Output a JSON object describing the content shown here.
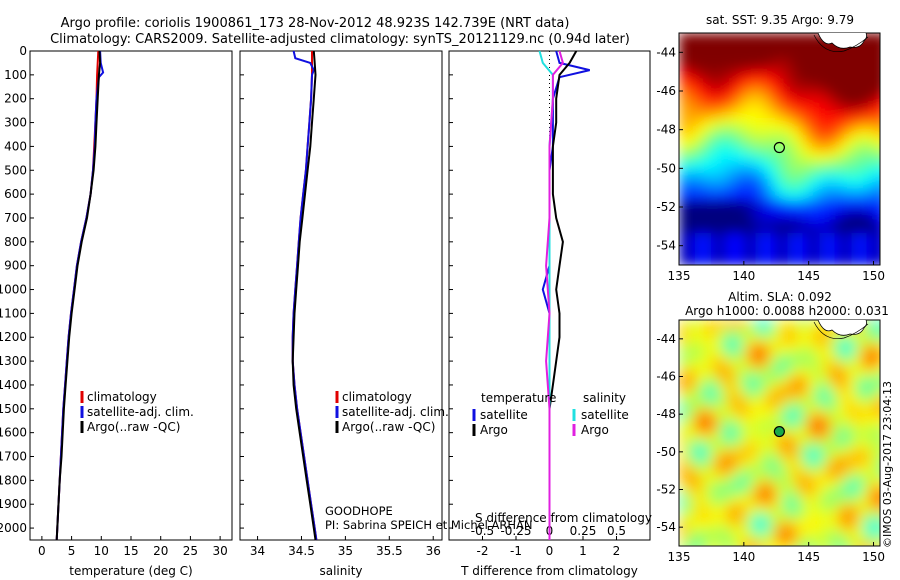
{
  "header": {
    "line1": "Argo profile: coriolis 1900861_173 28-Nov-2012 48.923S 142.739E (NRT data)",
    "line2": "Climatology: CARS2009. Satellite-adjusted climatology: synTS_20121129.nc (0.94d later)"
  },
  "footer": {
    "credit": "©IMOS 03-Aug-2017 23:04:13",
    "project": "GOODHOPE",
    "pi": "PI: Sabrina SPEICH et Michel ARHAN"
  },
  "colors": {
    "climatology": "#e00000",
    "satellite_adj": "#1010e0",
    "argo": "#000000",
    "satellite_s": "#20e0e0",
    "argo_s": "#e020e0"
  },
  "chart_data": [
    {
      "type": "line",
      "id": "temperature",
      "xlabel": "temperature (deg C)",
      "xlim": [
        -2,
        32
      ],
      "xticks": [
        0,
        5,
        10,
        15,
        20,
        25,
        30
      ],
      "ylim": [
        0,
        2050
      ],
      "yticks": [
        0,
        100,
        200,
        300,
        400,
        500,
        600,
        700,
        800,
        900,
        1000,
        1100,
        1200,
        1300,
        1400,
        1500,
        1600,
        1700,
        1800,
        1900,
        2000
      ],
      "legend": [
        "climatology",
        "satellite-adj. clim.",
        "Argo(..raw -QC)"
      ],
      "series": [
        {
          "name": "climatology",
          "color": "#e00000",
          "points": [
            [
              9.5,
              0
            ],
            [
              9.4,
              50
            ],
            [
              9.3,
              100
            ],
            [
              9.2,
              200
            ],
            [
              9.0,
              300
            ],
            [
              8.8,
              400
            ],
            [
              8.6,
              500
            ],
            [
              8.2,
              600
            ],
            [
              7.5,
              700
            ],
            [
              6.6,
              800
            ],
            [
              5.9,
              900
            ],
            [
              5.4,
              1000
            ],
            [
              4.9,
              1100
            ],
            [
              4.5,
              1200
            ],
            [
              4.2,
              1300
            ],
            [
              3.9,
              1400
            ],
            [
              3.6,
              1500
            ],
            [
              3.4,
              1600
            ],
            [
              3.2,
              1700
            ],
            [
              3.0,
              1800
            ],
            [
              2.8,
              1900
            ],
            [
              2.6,
              2000
            ],
            [
              2.5,
              2050
            ]
          ]
        },
        {
          "name": "satellite-adj. clim.",
          "color": "#1010e0",
          "points": [
            [
              9.8,
              0
            ],
            [
              9.9,
              50
            ],
            [
              10.3,
              90
            ],
            [
              9.6,
              110
            ],
            [
              9.2,
              200
            ],
            [
              9.0,
              300
            ],
            [
              8.9,
              400
            ],
            [
              8.6,
              500
            ],
            [
              8.2,
              600
            ],
            [
              7.5,
              700
            ],
            [
              6.6,
              800
            ],
            [
              5.9,
              900
            ],
            [
              5.4,
              1000
            ],
            [
              4.9,
              1100
            ],
            [
              4.5,
              1200
            ],
            [
              4.2,
              1300
            ],
            [
              3.9,
              1400
            ],
            [
              3.6,
              1500
            ],
            [
              3.4,
              1600
            ],
            [
              3.2,
              1700
            ],
            [
              3.0,
              1800
            ],
            [
              2.8,
              1900
            ],
            [
              2.6,
              2000
            ],
            [
              2.5,
              2050
            ]
          ]
        },
        {
          "name": "Argo(..raw -QC)",
          "color": "#000000",
          "points": [
            [
              9.7,
              0
            ],
            [
              9.8,
              50
            ],
            [
              9.6,
              100
            ],
            [
              9.5,
              150
            ],
            [
              9.4,
              200
            ],
            [
              9.2,
              300
            ],
            [
              9.0,
              400
            ],
            [
              8.7,
              500
            ],
            [
              8.2,
              600
            ],
            [
              7.6,
              700
            ],
            [
              6.7,
              800
            ],
            [
              6.0,
              900
            ],
            [
              5.5,
              1000
            ],
            [
              5.0,
              1100
            ],
            [
              4.6,
              1200
            ],
            [
              4.3,
              1300
            ],
            [
              4.0,
              1400
            ],
            [
              3.7,
              1500
            ],
            [
              3.5,
              1600
            ],
            [
              3.3,
              1700
            ],
            [
              3.0,
              1800
            ],
            [
              2.8,
              1900
            ],
            [
              2.6,
              2000
            ],
            [
              2.5,
              2050
            ]
          ]
        }
      ]
    },
    {
      "type": "line",
      "id": "salinity",
      "xlabel": "salinity",
      "xlim": [
        33.8,
        36.1
      ],
      "xticks": [
        34,
        34.5,
        35,
        35.5,
        36
      ],
      "ylim": [
        0,
        2050
      ],
      "legend": [
        "climatology",
        "satellite-adj. clim.",
        "Argo(..raw -QC)"
      ],
      "series": [
        {
          "name": "climatology",
          "color": "#e00000",
          "points": [
            [
              34.62,
              0
            ],
            [
              34.62,
              100
            ],
            [
              34.61,
              200
            ],
            [
              34.59,
              300
            ],
            [
              34.57,
              400
            ],
            [
              34.55,
              500
            ],
            [
              34.52,
              600
            ],
            [
              34.49,
              700
            ],
            [
              34.47,
              800
            ],
            [
              34.45,
              900
            ],
            [
              34.43,
              1000
            ],
            [
              34.41,
              1100
            ],
            [
              34.4,
              1200
            ],
            [
              34.4,
              1300
            ],
            [
              34.42,
              1400
            ],
            [
              34.45,
              1500
            ],
            [
              34.49,
              1600
            ],
            [
              34.53,
              1700
            ],
            [
              34.57,
              1800
            ],
            [
              34.61,
              1900
            ],
            [
              34.65,
              2000
            ],
            [
              34.67,
              2050
            ]
          ]
        },
        {
          "name": "satellite-adj. clim.",
          "color": "#1010e0",
          "points": [
            [
              34.41,
              0
            ],
            [
              34.43,
              30
            ],
            [
              34.6,
              50
            ],
            [
              34.64,
              80
            ],
            [
              34.62,
              100
            ],
            [
              34.61,
              200
            ],
            [
              34.59,
              300
            ],
            [
              34.57,
              400
            ],
            [
              34.55,
              500
            ],
            [
              34.52,
              600
            ],
            [
              34.49,
              700
            ],
            [
              34.47,
              800
            ],
            [
              34.45,
              900
            ],
            [
              34.43,
              1000
            ],
            [
              34.41,
              1100
            ],
            [
              34.4,
              1200
            ],
            [
              34.4,
              1300
            ],
            [
              34.42,
              1400
            ],
            [
              34.45,
              1500
            ],
            [
              34.49,
              1600
            ],
            [
              34.53,
              1700
            ],
            [
              34.57,
              1800
            ],
            [
              34.61,
              1900
            ],
            [
              34.65,
              2000
            ],
            [
              34.67,
              2050
            ]
          ]
        },
        {
          "name": "Argo(..raw -QC)",
          "color": "#000000",
          "points": [
            [
              34.64,
              0
            ],
            [
              34.65,
              50
            ],
            [
              34.66,
              100
            ],
            [
              34.64,
              200
            ],
            [
              34.62,
              300
            ],
            [
              34.6,
              400
            ],
            [
              34.57,
              500
            ],
            [
              34.54,
              600
            ],
            [
              34.51,
              700
            ],
            [
              34.48,
              800
            ],
            [
              34.46,
              900
            ],
            [
              34.44,
              1000
            ],
            [
              34.42,
              1100
            ],
            [
              34.41,
              1200
            ],
            [
              34.4,
              1300
            ],
            [
              34.41,
              1400
            ],
            [
              34.44,
              1500
            ],
            [
              34.48,
              1600
            ],
            [
              34.52,
              1700
            ],
            [
              34.56,
              1800
            ],
            [
              34.6,
              1900
            ],
            [
              34.64,
              2000
            ],
            [
              34.66,
              2050
            ]
          ]
        }
      ]
    },
    {
      "type": "line",
      "id": "differences",
      "xlabel": "T difference from climatology",
      "xlabel_top": "S difference from climatology",
      "xlim": [
        -3,
        3
      ],
      "xticks": [
        -2,
        -1,
        0,
        1,
        2
      ],
      "xticks_top": [
        -0.5,
        -0.25,
        0,
        0.25,
        0.5
      ],
      "ylim": [
        0,
        2050
      ],
      "legend": {
        "temperature": [
          "satellite",
          "Argo"
        ],
        "salinity": [
          "satellite",
          "Argo"
        ],
        "temperature_title": "temperature",
        "salinity_title": "salinity"
      },
      "series": [
        {
          "name": "T satellite",
          "color": "#1010e0",
          "points": [
            [
              0.2,
              0
            ],
            [
              0.3,
              50
            ],
            [
              1.2,
              80
            ],
            [
              0.3,
              110
            ],
            [
              0.1,
              200
            ],
            [
              0.1,
              300
            ],
            [
              0.1,
              400
            ],
            [
              0.0,
              500
            ],
            [
              0.0,
              700
            ],
            [
              0.0,
              900
            ],
            [
              -0.2,
              1000
            ],
            [
              0.0,
              1100
            ],
            [
              0.0,
              1300
            ],
            [
              0.0,
              1500
            ],
            [
              0.0,
              2050
            ]
          ]
        },
        {
          "name": "T Argo",
          "color": "#000000",
          "points": [
            [
              0.8,
              0
            ],
            [
              0.6,
              50
            ],
            [
              0.3,
              100
            ],
            [
              0.2,
              200
            ],
            [
              0.2,
              300
            ],
            [
              0.1,
              400
            ],
            [
              0.1,
              500
            ],
            [
              0.1,
              600
            ],
            [
              0.2,
              700
            ],
            [
              0.4,
              800
            ],
            [
              0.3,
              900
            ],
            [
              0.2,
              1000
            ],
            [
              0.3,
              1100
            ],
            [
              0.3,
              1200
            ],
            [
              0.2,
              1300
            ],
            [
              0.1,
              1400
            ],
            [
              0.0,
              1500
            ],
            [
              0.0,
              1600
            ],
            [
              0.0,
              2050
            ]
          ]
        },
        {
          "name": "S satellite",
          "color": "#20e0e0",
          "points": [
            [
              -0.3,
              0
            ],
            [
              -0.2,
              50
            ],
            [
              0.1,
              100
            ],
            [
              0.1,
              200
            ],
            [
              0.0,
              400
            ],
            [
              0.0,
              600
            ],
            [
              0.0,
              800
            ],
            [
              0.0,
              1000
            ],
            [
              0.0,
              1200
            ],
            [
              0.0,
              2050
            ]
          ]
        },
        {
          "name": "S Argo",
          "color": "#e020e0",
          "points": [
            [
              0.3,
              0
            ],
            [
              0.4,
              50
            ],
            [
              0.1,
              100
            ],
            [
              0.1,
              200
            ],
            [
              0.0,
              400
            ],
            [
              0.0,
              700
            ],
            [
              -0.1,
              900
            ],
            [
              0.0,
              1100
            ],
            [
              -0.1,
              1300
            ],
            [
              0.0,
              1500
            ],
            [
              0.0,
              2050
            ]
          ]
        }
      ]
    },
    {
      "type": "heatmap",
      "id": "sst-map",
      "title": "sat. SST: 9.35 Argo: 9.79",
      "xlim": [
        135,
        150.5
      ],
      "ylim": [
        -55,
        -43
      ],
      "xticks": [
        135,
        140,
        145,
        150
      ],
      "yticks": [
        -44,
        -46,
        -48,
        -50,
        -52,
        -54
      ],
      "argo_position": [
        142.739,
        -48.923
      ]
    },
    {
      "type": "heatmap",
      "id": "sla-map",
      "title": "Altim. SLA: 0.092",
      "subtitle": "Argo h1000: 0.0088 h2000: 0.031",
      "xlim": [
        135,
        150.5
      ],
      "ylim": [
        -55,
        -43
      ],
      "xticks": [
        135,
        140,
        145,
        150
      ],
      "yticks": [
        -44,
        -46,
        -48,
        -50,
        -52,
        -54
      ],
      "argo_position": [
        142.739,
        -48.923
      ]
    }
  ]
}
